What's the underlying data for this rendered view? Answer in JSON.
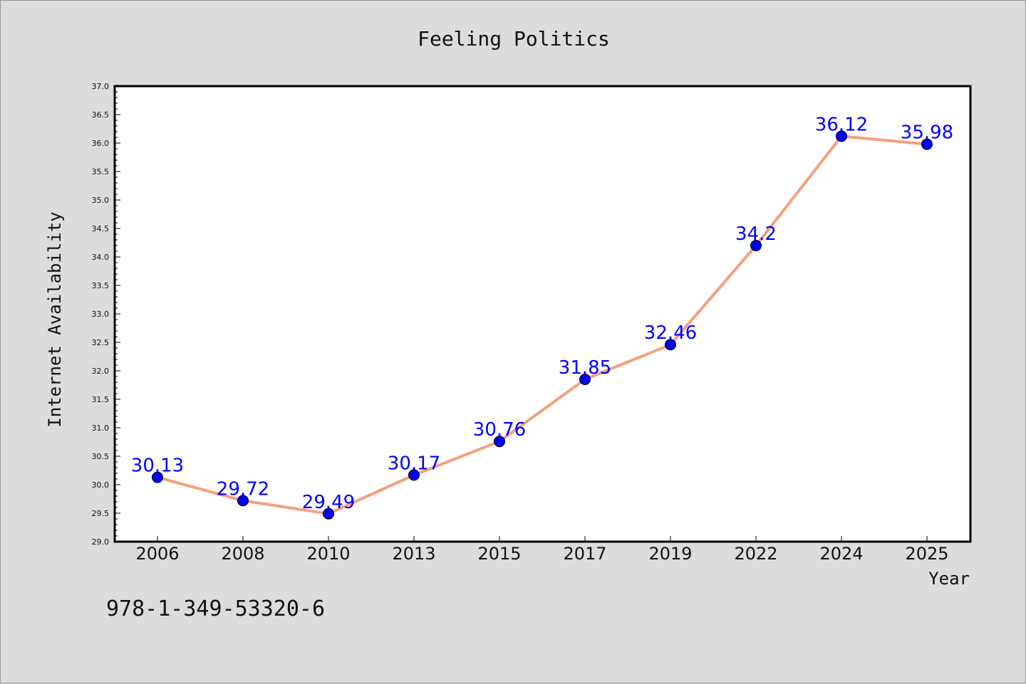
{
  "chart_data": {
    "type": "line",
    "title": "Feeling Politics",
    "xlabel": "Year",
    "ylabel": "Internet Availability",
    "categories": [
      "2006",
      "2008",
      "2010",
      "2013",
      "2015",
      "2017",
      "2019",
      "2022",
      "2024",
      "2025"
    ],
    "series": [
      {
        "values": [
          30.13,
          29.72,
          29.49,
          30.17,
          30.76,
          31.85,
          32.46,
          34.2,
          36.12,
          35.98
        ],
        "data_labels": [
          "30.13",
          "29.72",
          "29.49",
          "30.17",
          "30.76",
          "31.85",
          "32.46",
          "34.2",
          "36.12",
          "35.98"
        ]
      }
    ],
    "ylim": [
      29.0,
      37.0
    ],
    "ytick_labels": [
      "29.0",
      "29.5",
      "30.0",
      "30.5",
      "31.0",
      "31.5",
      "32.0",
      "32.5",
      "33.0",
      "33.5",
      "34.0",
      "34.5",
      "35.0",
      "35.5",
      "36.0",
      "36.5",
      "37.0"
    ],
    "grid": false,
    "colors": {
      "line": "#f4a07c",
      "marker": "#0000ff",
      "data_label": "#0000ff",
      "background": "#dcdcdc",
      "plot_background": "#ffffff"
    }
  },
  "footer": {
    "isbn": "978-1-349-53320-6"
  }
}
